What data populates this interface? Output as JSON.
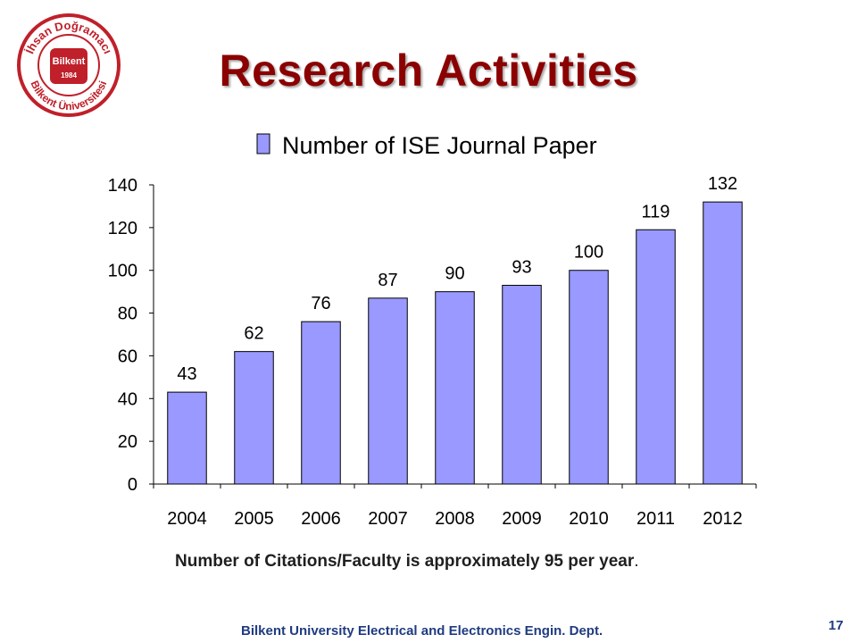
{
  "slide": {
    "title": "Research Activities",
    "footer": "Bilkent University Electrical and Electronics Engin. Dept.",
    "page_number": "17",
    "note": "Number of Citations/Faculty is approximately 95 per year",
    "note_suffix": ".",
    "colors": {
      "title": "#8b0000",
      "footer": "#1f3b80",
      "page_number": "#1f3b80",
      "bar_fill": "#9999ff",
      "bar_stroke": "#000000",
      "logo": "#c0202a"
    }
  },
  "logo": {
    "top_text": "İhsan Doğramacı",
    "bottom_text": "Bilkent Üniversitesi",
    "center_text": "Bilkent",
    "year": "1984"
  },
  "chart_data": {
    "type": "bar",
    "title": "",
    "legend": "Number of ISE Journal Paper",
    "legend_position": "top",
    "categories": [
      "2004",
      "2005",
      "2006",
      "2007",
      "2008",
      "2009",
      "2010",
      "2011",
      "2012"
    ],
    "series": [
      {
        "name": "Number of ISE Journal Paper",
        "values": [
          43,
          62,
          76,
          87,
          90,
          93,
          100,
          119,
          132
        ]
      }
    ],
    "data_labels": [
      "43",
      "62",
      "76",
      "87",
      "90",
      "93",
      "100",
      "119",
      "132"
    ],
    "y_ticks": [
      "0",
      "20",
      "40",
      "60",
      "80",
      "100",
      "120",
      "140"
    ],
    "ylim": [
      0,
      140
    ],
    "grid": false,
    "xlabel": "",
    "ylabel": ""
  }
}
